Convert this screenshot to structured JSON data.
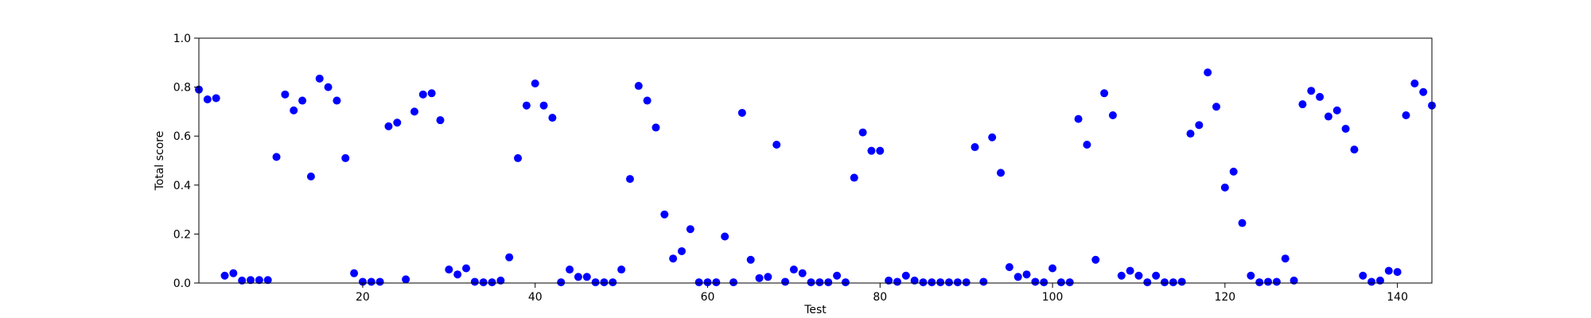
{
  "chart_data": {
    "type": "scatter",
    "xlabel": "Test",
    "ylabel": "Total score",
    "xlim": [
      1,
      144
    ],
    "ylim": [
      0.0,
      1.0
    ],
    "x_ticks": [
      20,
      40,
      60,
      80,
      100,
      120,
      140
    ],
    "x_tick_labels": [
      "20",
      "40",
      "60",
      "80",
      "100",
      "120",
      "140"
    ],
    "y_ticks": [
      0.0,
      0.2,
      0.4,
      0.6,
      0.8,
      1.0
    ],
    "y_tick_labels": [
      "0.0",
      "0.2",
      "0.4",
      "0.6",
      "0.8",
      "1.0"
    ],
    "grid": false,
    "marker_color": "#0000ff",
    "x": [
      1,
      2,
      3,
      4,
      5,
      6,
      7,
      8,
      9,
      10,
      11,
      12,
      13,
      14,
      15,
      16,
      17,
      18,
      19,
      20,
      21,
      22,
      23,
      24,
      25,
      26,
      27,
      28,
      29,
      30,
      31,
      32,
      33,
      34,
      35,
      36,
      37,
      38,
      39,
      40,
      41,
      42,
      43,
      44,
      45,
      46,
      47,
      48,
      49,
      50,
      51,
      52,
      53,
      54,
      55,
      56,
      57,
      58,
      59,
      60,
      61,
      62,
      63,
      64,
      65,
      66,
      67,
      68,
      69,
      70,
      71,
      72,
      73,
      74,
      75,
      76,
      77,
      78,
      79,
      80,
      81,
      82,
      83,
      84,
      85,
      86,
      87,
      88,
      89,
      90,
      91,
      92,
      93,
      94,
      95,
      96,
      97,
      98,
      99,
      100,
      101,
      102,
      103,
      104,
      105,
      106,
      107,
      108,
      109,
      110,
      111,
      112,
      113,
      114,
      115,
      116,
      117,
      118,
      119,
      120,
      121,
      122,
      123,
      124,
      125,
      126,
      127,
      128,
      129,
      130,
      131,
      132,
      133,
      134,
      135,
      136,
      137,
      138,
      139,
      140,
      141,
      142,
      143,
      144
    ],
    "y": [
      0.79,
      0.75,
      0.755,
      0.03,
      0.04,
      0.01,
      0.012,
      0.012,
      0.012,
      0.515,
      0.77,
      0.705,
      0.745,
      0.435,
      0.835,
      0.8,
      0.745,
      0.51,
      0.04,
      0.005,
      0.005,
      0.005,
      0.64,
      0.655,
      0.015,
      0.7,
      0.77,
      0.775,
      0.665,
      0.055,
      0.035,
      0.06,
      0.005,
      0.003,
      0.003,
      0.01,
      0.105,
      0.51,
      0.725,
      0.815,
      0.725,
      0.675,
      0.003,
      0.055,
      0.025,
      0.025,
      0.003,
      0.003,
      0.003,
      0.055,
      0.425,
      0.805,
      0.745,
      0.635,
      0.28,
      0.1,
      0.13,
      0.22,
      0.003,
      0.003,
      0.003,
      0.19,
      0.003,
      0.695,
      0.095,
      0.02,
      0.025,
      0.565,
      0.005,
      0.055,
      0.04,
      0.003,
      0.003,
      0.003,
      0.03,
      0.003,
      0.43,
      0.615,
      0.54,
      0.54,
      0.01,
      0.005,
      0.03,
      0.01,
      0.003,
      0.003,
      0.003,
      0.003,
      0.003,
      0.003,
      0.555,
      0.005,
      0.595,
      0.45,
      0.065,
      0.025,
      0.035,
      0.005,
      0.003,
      0.06,
      0.003,
      0.003,
      0.67,
      0.565,
      0.095,
      0.775,
      0.685,
      0.03,
      0.05,
      0.03,
      0.003,
      0.03,
      0.003,
      0.003,
      0.005,
      0.61,
      0.645,
      0.86,
      0.72,
      0.39,
      0.455,
      0.245,
      0.03,
      0.003,
      0.005,
      0.005,
      0.1,
      0.01,
      0.73,
      0.785,
      0.76,
      0.68,
      0.705,
      0.63,
      0.545,
      0.03,
      0.005,
      0.01,
      0.05,
      0.045,
      0.685,
      0.815,
      0.78,
      0.725
    ]
  }
}
